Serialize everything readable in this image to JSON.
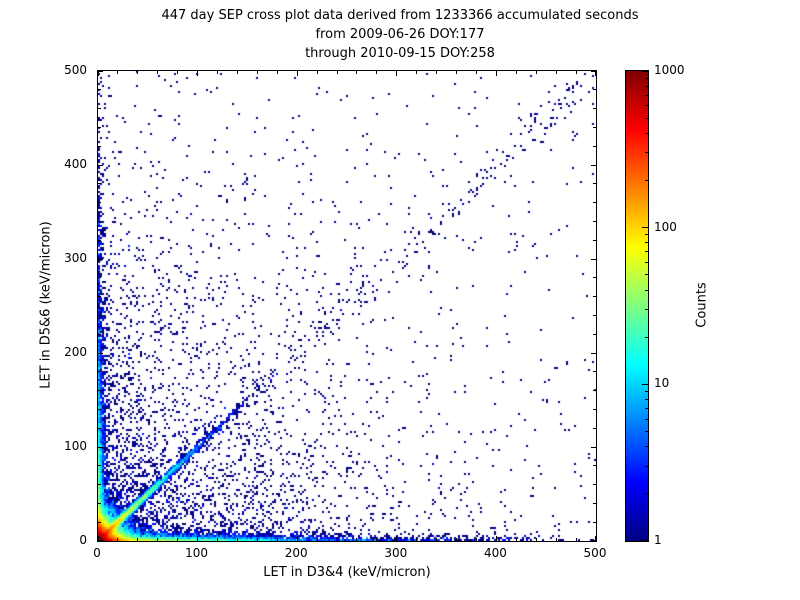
{
  "figure": {
    "background": "#FFFFFF",
    "axes_color": "#000000",
    "text_color": "#000000"
  },
  "chart_data": {
    "type": "scatter",
    "title_lines": [
      "447 day SEP cross plot data derived from 1233366 accumulated seconds",
      "from 2009-06-26 DOY:177",
      "through 2010-09-15 DOY:258"
    ],
    "xlabel": "LET in D3&4 (keV/micron)",
    "ylabel": "LET in D5&6 (keV/micron)",
    "xlim": [
      0,
      500
    ],
    "ylim": [
      0,
      500
    ],
    "xticks": [
      0,
      100,
      200,
      300,
      400,
      500
    ],
    "yticks": [
      0,
      100,
      200,
      300,
      400,
      500
    ],
    "minor_tick_step": 20,
    "grid": false,
    "colorbar": {
      "label": "Counts",
      "scale": "log",
      "min": 1,
      "max": 1000,
      "ticks": [
        1,
        10,
        100,
        1000
      ],
      "colormap": "jet",
      "stops": [
        {
          "t": 0.0,
          "color": "#000080"
        },
        {
          "t": 0.125,
          "color": "#0000FF"
        },
        {
          "t": 0.375,
          "color": "#00FFFF"
        },
        {
          "t": 0.625,
          "color": "#FFFF00"
        },
        {
          "t": 0.875,
          "color": "#FF0000"
        },
        {
          "t": 1.0,
          "color": "#800000"
        }
      ]
    },
    "distribution": {
      "seed": 42,
      "description": "Monte-Carlo approximation of the density scatter: very dense hot core at the origin, a bright y=x coincidence streak fading with distance, event pile-ups hugging both axes, a faint diagonal trail to the upper right, and sparse single-count dark-blue events scattered over the plane",
      "components": [
        {
          "name": "origin-core",
          "type": "exp2d",
          "n": 26000,
          "mean_x": 8,
          "mean_y": 8
        },
        {
          "name": "diagonal-streak",
          "type": "diagonal-exp",
          "n": 7000,
          "mean_t": 28,
          "jitter": 1.6
        },
        {
          "name": "diagonal-trail",
          "type": "diagonal-uniform",
          "n": 260,
          "t_min": 60,
          "t_max": 495,
          "jitter": 7
        },
        {
          "name": "x-axis-band",
          "type": "exp2d",
          "n": 6000,
          "mean_x": 85,
          "mean_y": 2.5
        },
        {
          "name": "y-axis-band",
          "type": "exp2d",
          "n": 3500,
          "mean_x": 2.5,
          "mean_y": 95
        },
        {
          "name": "bulk-scatter",
          "type": "exp2d",
          "n": 3000,
          "mean_x": 110,
          "mean_y": 110
        },
        {
          "name": "uniform-sparse",
          "type": "uniform",
          "n": 450
        }
      ]
    }
  }
}
